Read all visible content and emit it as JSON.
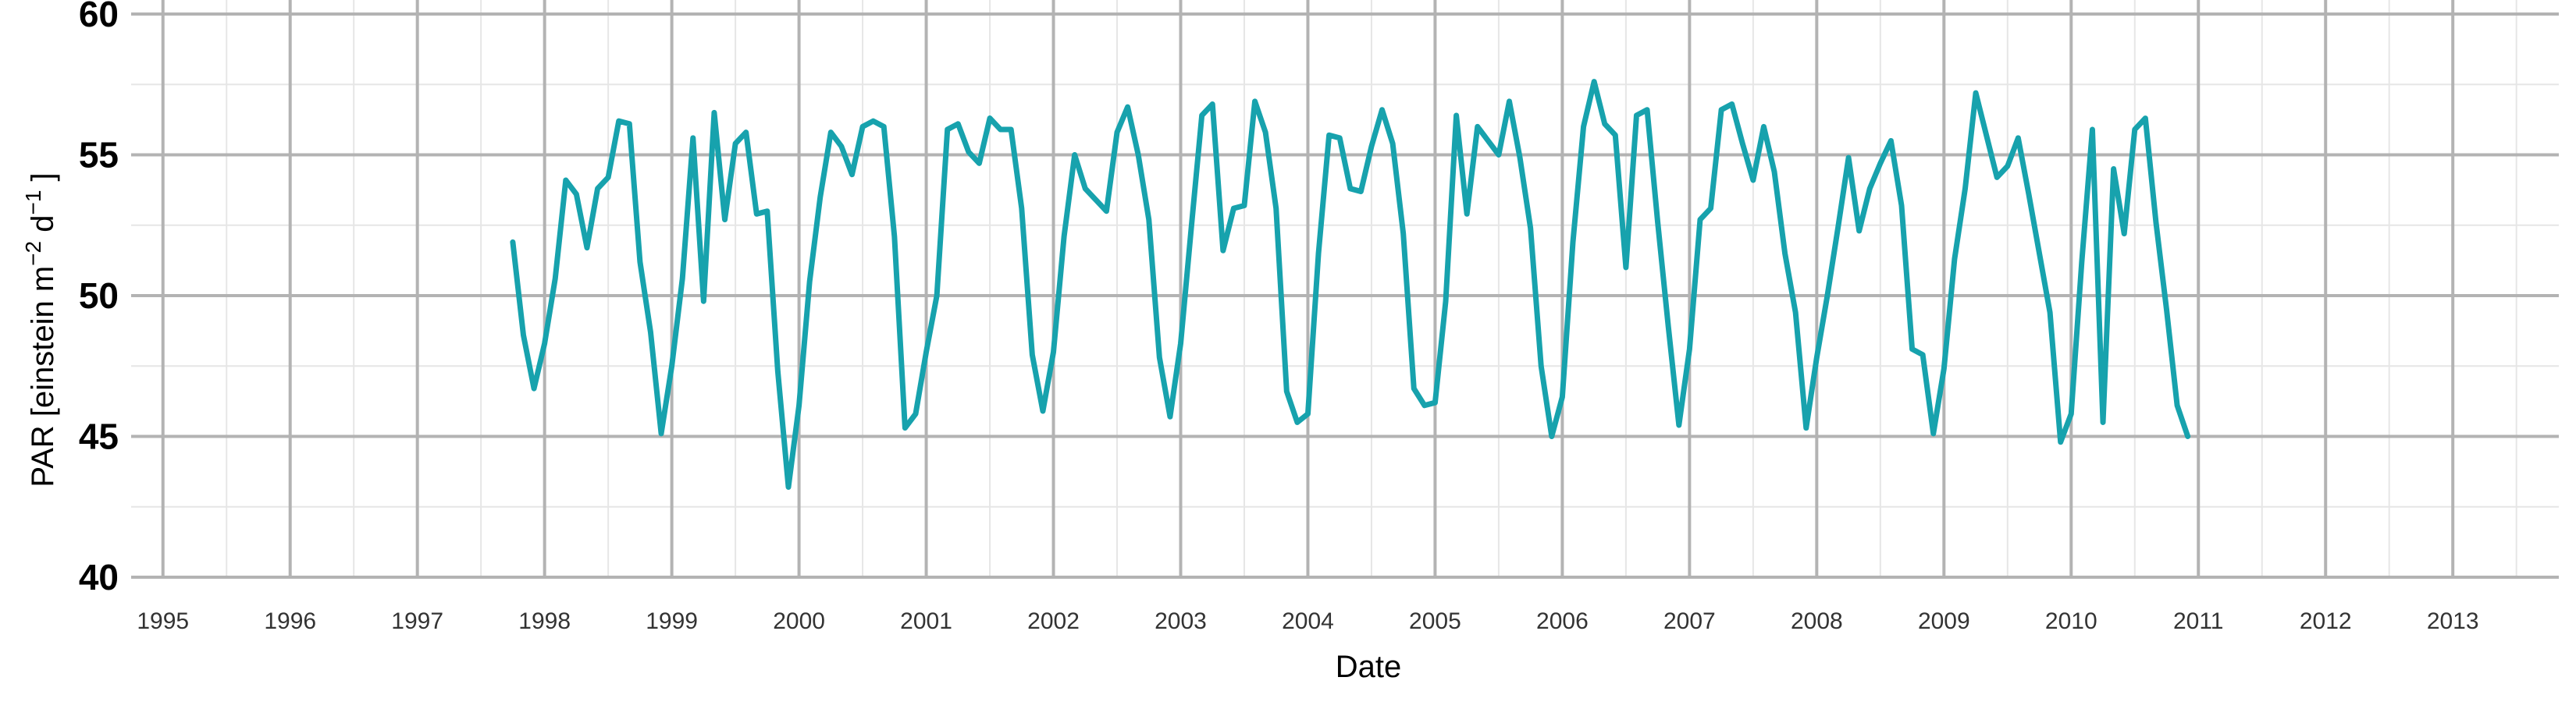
{
  "chart_data": {
    "type": "line",
    "title": "",
    "xlabel": "Date",
    "ylabel": "PAR [einstein m^-2 d^-1]",
    "ylabel_parts": {
      "main": "PAR [einstein  m",
      "exp1": "−2",
      "mid": "  d",
      "exp2": "−1",
      "end": " ]"
    },
    "xlim": [
      "1994-10-01",
      "2013-11-01"
    ],
    "ylim": [
      40,
      60
    ],
    "grid": true,
    "legend": "none",
    "color": "#17a2ad",
    "y_ticks": [
      40,
      45,
      50,
      55,
      60
    ],
    "x_ticks": [
      "1995",
      "1996",
      "1997",
      "1998",
      "1999",
      "2000",
      "2001",
      "2002",
      "2003",
      "2004",
      "2005",
      "2006",
      "2007",
      "2008",
      "2009",
      "2010",
      "2011",
      "2012",
      "2013"
    ],
    "series": [
      {
        "x": [
          "1997-10",
          "1997-11",
          "1997-12",
          "1998-01",
          "1998-02",
          "1998-03",
          "1998-04",
          "1998-05",
          "1998-06",
          "1998-07",
          "1998-08",
          "1998-09",
          "1998-10",
          "1998-11",
          "1998-12",
          "1999-01",
          "1999-02",
          "1999-03",
          "1999-04",
          "1999-05",
          "1999-06",
          "1999-07",
          "1999-08",
          "1999-09",
          "1999-10",
          "1999-11",
          "1999-12",
          "2000-01",
          "2000-02",
          "2000-03",
          "2000-04",
          "2000-05",
          "2000-06",
          "2000-07",
          "2000-08",
          "2000-09",
          "2000-10",
          "2000-11",
          "2000-12",
          "2001-01",
          "2001-02",
          "2001-03",
          "2001-04",
          "2001-05",
          "2001-06",
          "2001-07",
          "2001-08",
          "2001-09",
          "2001-10",
          "2001-11",
          "2001-12",
          "2002-01",
          "2002-02",
          "2002-03",
          "2002-04",
          "2002-05",
          "2002-06",
          "2002-07",
          "2002-08",
          "2002-09",
          "2002-10",
          "2002-11",
          "2002-12",
          "2003-01",
          "2003-02",
          "2003-03",
          "2003-04",
          "2003-05",
          "2003-06",
          "2003-07",
          "2003-08",
          "2003-09",
          "2003-10",
          "2003-11",
          "2003-12",
          "2004-01",
          "2004-02",
          "2004-03",
          "2004-04",
          "2004-05",
          "2004-06",
          "2004-07",
          "2004-08",
          "2004-09",
          "2004-10",
          "2004-11",
          "2004-12",
          "2005-01",
          "2005-02",
          "2005-03",
          "2005-04",
          "2005-05",
          "2005-06",
          "2005-07",
          "2005-08",
          "2005-09",
          "2005-10",
          "2005-11",
          "2005-12",
          "2006-01",
          "2006-02",
          "2006-03",
          "2006-04",
          "2006-05",
          "2006-06",
          "2006-07",
          "2006-08",
          "2006-09",
          "2006-10",
          "2006-11",
          "2006-12",
          "2007-01",
          "2007-02",
          "2007-03",
          "2007-04",
          "2007-05",
          "2007-06",
          "2007-07",
          "2007-08",
          "2007-09",
          "2007-10",
          "2007-11",
          "2007-12",
          "2008-01",
          "2008-02",
          "2008-03",
          "2008-04",
          "2008-05",
          "2008-06",
          "2008-07",
          "2008-08",
          "2008-09",
          "2008-10",
          "2008-11",
          "2008-12",
          "2009-01",
          "2009-02",
          "2009-03",
          "2009-04",
          "2009-05",
          "2009-06",
          "2009-07",
          "2009-08",
          "2009-09",
          "2009-10",
          "2009-11",
          "2009-12",
          "2010-01",
          "2010-02",
          "2010-03",
          "2010-04",
          "2010-05",
          "2010-06",
          "2010-07",
          "2010-08",
          "2010-09",
          "2010-10",
          "2010-11",
          "2010-12"
        ],
        "y": [
          51.9,
          48.6,
          46.7,
          48.3,
          50.6,
          54.1,
          53.6,
          51.7,
          53.8,
          54.2,
          56.2,
          56.1,
          51.2,
          48.7,
          45.1,
          47.5,
          50.6,
          55.6,
          49.8,
          56.5,
          52.7,
          55.4,
          55.8,
          52.9,
          53.0,
          47.3,
          43.2,
          46.1,
          50.5,
          53.5,
          55.8,
          55.3,
          54.3,
          56.0,
          56.2,
          56.0,
          52.1,
          45.3,
          45.8,
          48.0,
          50.0,
          55.9,
          56.1,
          55.1,
          54.7,
          56.3,
          55.9,
          55.9,
          53.1,
          47.9,
          45.9,
          48.0,
          52.1,
          55.0,
          53.8,
          53.4,
          53.0,
          55.8,
          56.7,
          55.0,
          52.7,
          47.8,
          45.7,
          48.3,
          52.4,
          56.4,
          56.8,
          51.6,
          53.1,
          53.2,
          56.9,
          55.8,
          53.1,
          46.6,
          45.5,
          45.8,
          51.5,
          55.7,
          55.6,
          53.8,
          53.7,
          55.3,
          56.6,
          55.4,
          52.2,
          46.7,
          46.1,
          46.2,
          49.8,
          56.4,
          52.9,
          56.0,
          55.5,
          55.0,
          56.9,
          54.9,
          52.4,
          47.5,
          45.0,
          46.4,
          51.9,
          56.0,
          57.6,
          56.1,
          55.7,
          51.0,
          56.4,
          56.6,
          52.6,
          48.9,
          45.4,
          48.1,
          52.7,
          53.1,
          56.6,
          56.8,
          55.4,
          54.1,
          56.0,
          54.4,
          51.5,
          49.4,
          45.3,
          47.8,
          50.0,
          52.4,
          54.9,
          52.3,
          53.8,
          54.7,
          55.5,
          53.2,
          48.1,
          47.9,
          45.1,
          47.4,
          51.3,
          53.8,
          57.2,
          55.7,
          54.2,
          54.6,
          55.6,
          53.6,
          51.5,
          49.4,
          44.8,
          45.8,
          51.2,
          55.9,
          45.5,
          54.5,
          52.2,
          55.9,
          56.3,
          52.6,
          49.5,
          46.1,
          45.0
        ]
      }
    ]
  }
}
